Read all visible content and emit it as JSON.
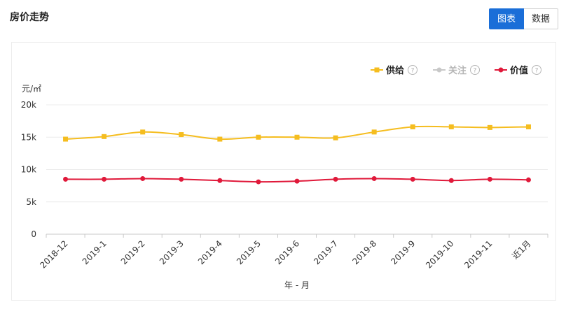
{
  "header": {
    "title": "房价走势"
  },
  "view_toggle": {
    "chart_label": "图表",
    "data_label": "数据"
  },
  "legend": {
    "help_glyph": "?",
    "items": [
      {
        "label": "供给",
        "color": "#f5bd1f",
        "active": true,
        "marker": "square"
      },
      {
        "label": "关注",
        "color": "#c8c8c8",
        "active": false,
        "marker": "circle"
      },
      {
        "label": "价值",
        "color": "#e0193a",
        "active": true,
        "marker": "circle"
      }
    ]
  },
  "chart_data": {
    "type": "line",
    "unit_label": "元/㎡",
    "xlabel": "年 - 月",
    "ylim": [
      0,
      20000
    ],
    "yticks": [
      0,
      5000,
      10000,
      15000,
      20000
    ],
    "ytick_labels": [
      "0",
      "5k",
      "10k",
      "15k",
      "20k"
    ],
    "categories": [
      "2018-12",
      "2019-1",
      "2019-2",
      "2019-3",
      "2019-4",
      "2019-5",
      "2019-6",
      "2019-7",
      "2019-8",
      "2019-9",
      "2019-10",
      "2019-11",
      "近1月"
    ],
    "series": [
      {
        "name": "供给",
        "color": "#f5bd1f",
        "marker": "square",
        "values": [
          14700,
          15100,
          15800,
          15400,
          14700,
          15000,
          15000,
          14900,
          15800,
          16600,
          16600,
          16500,
          16600
        ]
      },
      {
        "name": "价值",
        "color": "#e0193a",
        "marker": "circle",
        "values": [
          8500,
          8500,
          8600,
          8500,
          8300,
          8100,
          8200,
          8500,
          8600,
          8500,
          8300,
          8500,
          8400
        ]
      }
    ],
    "grid": true
  }
}
